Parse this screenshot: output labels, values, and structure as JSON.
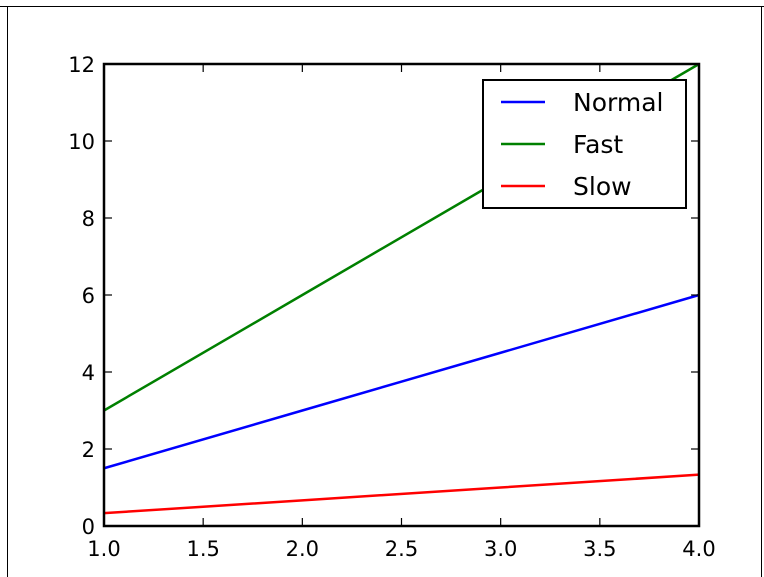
{
  "chart_data": {
    "type": "line",
    "title": "",
    "xlabel": "",
    "ylabel": "",
    "xlim": [
      1.0,
      4.0
    ],
    "ylim": [
      0,
      12
    ],
    "x": [
      1.0,
      2.0,
      3.0,
      4.0
    ],
    "x_ticks": [
      "1.0",
      "1.5",
      "2.0",
      "2.5",
      "3.0",
      "3.5",
      "4.0"
    ],
    "y_ticks": [
      "0",
      "2",
      "4",
      "6",
      "8",
      "10",
      "12"
    ],
    "grid": false,
    "legend_position": "top-right",
    "series": [
      {
        "name": "Normal",
        "color": "#0000ff",
        "values": [
          1.5,
          3.0,
          4.5,
          6.0
        ]
      },
      {
        "name": "Fast",
        "color": "#008000",
        "values": [
          3.0,
          6.0,
          9.0,
          12.0
        ]
      },
      {
        "name": "Slow",
        "color": "#ff0000",
        "values": [
          0.3333,
          0.6667,
          1.0,
          1.3333
        ]
      }
    ]
  }
}
